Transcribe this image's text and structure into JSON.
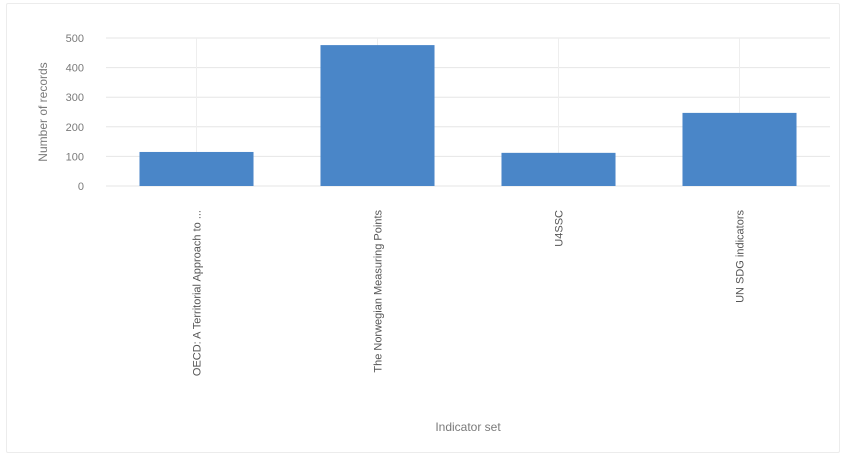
{
  "chart_data": {
    "type": "bar",
    "title": "",
    "xlabel": "Indicator set",
    "ylabel": "Number of records",
    "categories": [
      "OECD: A Territorial Approach to ...",
      "The Norwegian Measuring Points",
      "U4SSC",
      "UN SDG indicators"
    ],
    "values": [
      115,
      476,
      112,
      247
    ],
    "ylim": [
      0,
      500
    ],
    "yticks": [
      0,
      100,
      200,
      300,
      400,
      500
    ],
    "grid": true,
    "legend": "none",
    "bar_color": "#4a86c8",
    "grid_color": "#e6e6e6"
  }
}
